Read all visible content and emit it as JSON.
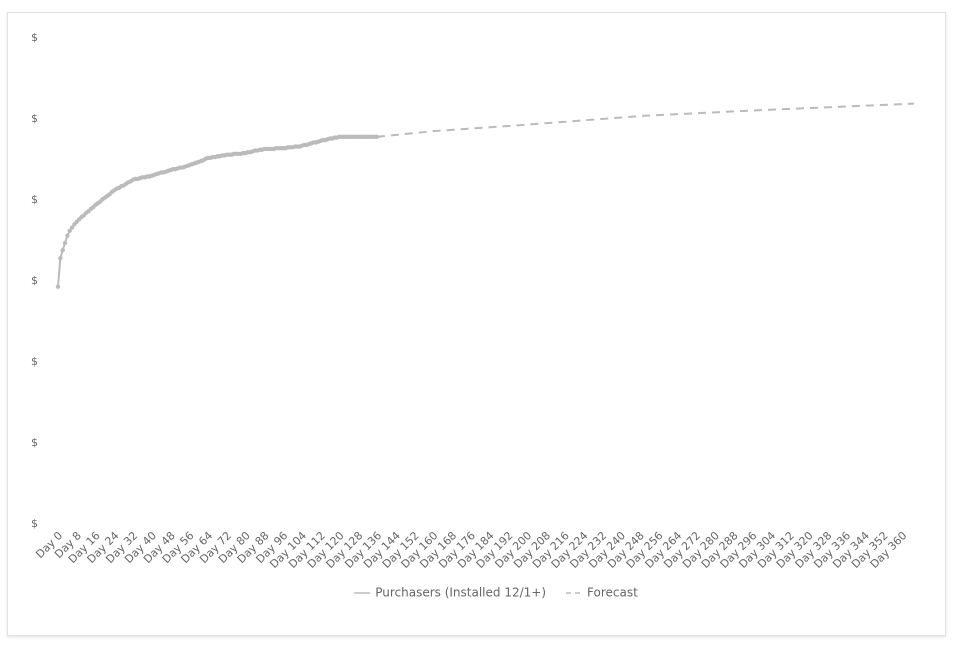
{
  "chart_data": {
    "type": "line",
    "xlim": [
      0,
      365
    ],
    "ylim": [
      0,
      6
    ],
    "yticks": [
      {
        "value": 0,
        "label": "$"
      },
      {
        "value": 1,
        "label": "$"
      },
      {
        "value": 2,
        "label": "$"
      },
      {
        "value": 3,
        "label": "$"
      },
      {
        "value": 4,
        "label": "$"
      },
      {
        "value": 5,
        "label": "$"
      },
      {
        "value": 6,
        "label": "$"
      }
    ],
    "xticks": [
      {
        "value": 0,
        "label": "Day 0"
      },
      {
        "value": 8,
        "label": "Day 8"
      },
      {
        "value": 16,
        "label": "Day 16"
      },
      {
        "value": 24,
        "label": "Day 24"
      },
      {
        "value": 32,
        "label": "Day 32"
      },
      {
        "value": 40,
        "label": "Day 40"
      },
      {
        "value": 48,
        "label": "Day 48"
      },
      {
        "value": 56,
        "label": "Day 56"
      },
      {
        "value": 64,
        "label": "Day 64"
      },
      {
        "value": 72,
        "label": "Day 72"
      },
      {
        "value": 80,
        "label": "Day 80"
      },
      {
        "value": 88,
        "label": "Day 88"
      },
      {
        "value": 96,
        "label": "Day 96"
      },
      {
        "value": 104,
        "label": "Day 104"
      },
      {
        "value": 112,
        "label": "Day 112"
      },
      {
        "value": 120,
        "label": "Day 120"
      },
      {
        "value": 128,
        "label": "Day 128"
      },
      {
        "value": 136,
        "label": "Day 136"
      },
      {
        "value": 144,
        "label": "Day 144"
      },
      {
        "value": 152,
        "label": "Day 152"
      },
      {
        "value": 160,
        "label": "Day 160"
      },
      {
        "value": 168,
        "label": "Day 168"
      },
      {
        "value": 176,
        "label": "Day 176"
      },
      {
        "value": 184,
        "label": "Day 184"
      },
      {
        "value": 192,
        "label": "Day 192"
      },
      {
        "value": 200,
        "label": "Day 200"
      },
      {
        "value": 208,
        "label": "Day 208"
      },
      {
        "value": 216,
        "label": "Day 216"
      },
      {
        "value": 224,
        "label": "Day 224"
      },
      {
        "value": 232,
        "label": "Day 232"
      },
      {
        "value": 240,
        "label": "Day 240"
      },
      {
        "value": 248,
        "label": "Day 248"
      },
      {
        "value": 256,
        "label": "Day 256"
      },
      {
        "value": 264,
        "label": "Day 264"
      },
      {
        "value": 272,
        "label": "Day 272"
      },
      {
        "value": 280,
        "label": "Day 280"
      },
      {
        "value": 288,
        "label": "Day 288"
      },
      {
        "value": 296,
        "label": "Day 296"
      },
      {
        "value": 304,
        "label": "Day 304"
      },
      {
        "value": 312,
        "label": "Day 312"
      },
      {
        "value": 320,
        "label": "Day 320"
      },
      {
        "value": 328,
        "label": "Day 328"
      },
      {
        "value": 336,
        "label": "Day 336"
      },
      {
        "value": 344,
        "label": "Day 344"
      },
      {
        "value": 352,
        "label": "Day 352"
      },
      {
        "value": 360,
        "label": "Day 360"
      }
    ],
    "grid": false,
    "legend": "bottom",
    "series": [
      {
        "name": "Purchasers (Installed 12/1+)",
        "color": "#bbbbbb",
        "style": "solid",
        "markers": true,
        "x": [
          0,
          1,
          2,
          3,
          4,
          5,
          6,
          7,
          8,
          9,
          10,
          11,
          12,
          13,
          14,
          15,
          16,
          17,
          18,
          19,
          20,
          21,
          22,
          23,
          24,
          25,
          26,
          27,
          28,
          29,
          30,
          31,
          32,
          33,
          34,
          35,
          36,
          37,
          38,
          39,
          40,
          41,
          42,
          43,
          44,
          45,
          46,
          47,
          48,
          49,
          50,
          51,
          52,
          53,
          54,
          55,
          56,
          57,
          58,
          59,
          60,
          61,
          62,
          63,
          64,
          65,
          66,
          67,
          68,
          69,
          70,
          71,
          72,
          73,
          74,
          75,
          76,
          77,
          78,
          79,
          80,
          81,
          82,
          83,
          84,
          85,
          86,
          87,
          88,
          89,
          90,
          91,
          92,
          93,
          94,
          95,
          96,
          97,
          98,
          99,
          100,
          101,
          102,
          103,
          104,
          105,
          106,
          107,
          108,
          109,
          110,
          111,
          112,
          113,
          114,
          115,
          116,
          117,
          118,
          119,
          120,
          121,
          122,
          123,
          124,
          125,
          126,
          127,
          128,
          129,
          130,
          131,
          132,
          133,
          134,
          135,
          136
        ],
        "values": [
          2.93,
          3.28,
          3.38,
          3.47,
          3.56,
          3.62,
          3.66,
          3.7,
          3.73,
          3.76,
          3.79,
          3.81,
          3.84,
          3.86,
          3.89,
          3.91,
          3.94,
          3.96,
          3.98,
          4.01,
          4.03,
          4.05,
          4.07,
          4.1,
          4.12,
          4.14,
          4.15,
          4.17,
          4.18,
          4.2,
          4.22,
          4.23,
          4.25,
          4.26,
          4.26,
          4.27,
          4.28,
          4.28,
          4.29,
          4.29,
          4.3,
          4.31,
          4.32,
          4.33,
          4.34,
          4.34,
          4.35,
          4.36,
          4.37,
          4.38,
          4.38,
          4.39,
          4.4,
          4.4,
          4.41,
          4.42,
          4.43,
          4.44,
          4.45,
          4.46,
          4.47,
          4.48,
          4.49,
          4.51,
          4.52,
          4.52,
          4.53,
          4.53,
          4.54,
          4.54,
          4.55,
          4.55,
          4.56,
          4.56,
          4.56,
          4.57,
          4.57,
          4.57,
          4.57,
          4.58,
          4.58,
          4.59,
          4.59,
          4.6,
          4.61,
          4.61,
          4.62,
          4.62,
          4.63,
          4.63,
          4.63,
          4.63,
          4.63,
          4.64,
          4.64,
          4.64,
          4.64,
          4.64,
          4.65,
          4.65,
          4.65,
          4.66,
          4.66,
          4.66,
          4.67,
          4.68,
          4.68,
          4.69,
          4.7,
          4.71,
          4.71,
          4.72,
          4.73,
          4.74,
          4.74,
          4.75,
          4.76,
          4.76,
          4.77,
          4.77,
          4.78,
          4.78,
          4.78,
          4.78,
          4.78,
          4.78,
          4.78,
          4.78,
          4.78,
          4.78,
          4.78,
          4.78,
          4.78,
          4.78,
          4.78,
          4.78,
          4.78
        ]
      },
      {
        "name": "Forecast",
        "color": "#bbbbbb",
        "style": "dashed",
        "markers": false,
        "x": [
          136,
          160,
          200,
          250,
          300,
          365
        ],
        "values": [
          4.78,
          4.85,
          4.93,
          5.04,
          5.11,
          5.19
        ]
      }
    ]
  }
}
